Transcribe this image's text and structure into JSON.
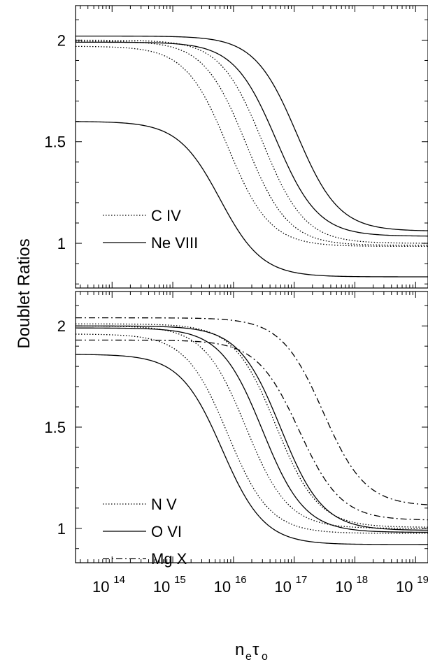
{
  "chart_data": [
    {
      "type": "line",
      "panel": "top",
      "x_scale": "log",
      "xlim": [
        25000000000000.0,
        1.6e+19
      ],
      "ylim": [
        0.78,
        2.17
      ],
      "y_ticks": [
        1,
        1.5,
        2
      ],
      "y_tick_labels": [
        "1",
        "1.5",
        "2"
      ],
      "legend": [
        {
          "label": "C IV",
          "style": "dotted"
        },
        {
          "label": "Ne VIII",
          "style": "solid"
        }
      ],
      "legend_position": "bottom-left",
      "series": [
        {
          "style": "dotted",
          "group": "C IV",
          "top": 1.97,
          "bottom": 0.985,
          "mid_x": 8000000000000000.0
        },
        {
          "style": "dotted",
          "group": "C IV",
          "top": 1.995,
          "bottom": 0.99,
          "mid_x": 1.6e+16
        },
        {
          "style": "dotted",
          "group": "C IV",
          "top": 2.0,
          "bottom": 1.0,
          "mid_x": 3e+16
        },
        {
          "style": "solid",
          "group": "Ne VIII",
          "top": 1.6,
          "bottom": 0.835,
          "mid_x": 6000000000000000.0
        },
        {
          "style": "solid",
          "group": "Ne VIII",
          "top": 1.99,
          "bottom": 1.035,
          "mid_x": 5e+16
        },
        {
          "style": "solid",
          "group": "Ne VIII",
          "top": 2.02,
          "bottom": 1.06,
          "mid_x": 1.1e+17
        }
      ]
    },
    {
      "type": "line",
      "panel": "bottom",
      "x_scale": "log",
      "xlim": [
        25000000000000.0,
        1.6e+19
      ],
      "ylim": [
        0.83,
        2.17
      ],
      "y_ticks": [
        1,
        1.5,
        2
      ],
      "y_tick_labels": [
        "1",
        "1.5",
        "2"
      ],
      "x_ticks": [
        100000000000000.0,
        1000000000000000.0,
        1e+16,
        1e+17,
        1e+18,
        1e+19
      ],
      "x_tick_labels": [
        "14",
        "15",
        "16",
        "17",
        "18",
        "19"
      ],
      "x_tick_base": "10",
      "legend": [
        {
          "label": "N V",
          "style": "dotted"
        },
        {
          "label": "O VI",
          "style": "solid"
        },
        {
          "label": "Mg X",
          "style": "dashdot"
        }
      ],
      "legend_position": "bottom-left",
      "series": [
        {
          "style": "dotted",
          "group": "N V",
          "top": 1.96,
          "bottom": 0.975,
          "mid_x": 8000000000000000.0
        },
        {
          "style": "dotted",
          "group": "N V",
          "top": 2.0,
          "bottom": 1.0,
          "mid_x": 1.6e+16
        },
        {
          "style": "dotted",
          "group": "N V",
          "top": 2.01,
          "bottom": 1.005,
          "mid_x": 5e+16
        },
        {
          "style": "solid",
          "group": "O VI",
          "top": 1.86,
          "bottom": 0.92,
          "mid_x": 6500000000000000.0
        },
        {
          "style": "solid",
          "group": "O VI",
          "top": 1.99,
          "bottom": 0.98,
          "mid_x": 3e+16
        },
        {
          "style": "solid",
          "group": "O VI",
          "top": 2.0,
          "bottom": 0.99,
          "mid_x": 6e+16
        },
        {
          "style": "dashdot",
          "group": "Mg X",
          "top": 1.93,
          "bottom": 1.04,
          "mid_x": 1.2e+17
        },
        {
          "style": "dashdot",
          "group": "Mg X",
          "top": 2.04,
          "bottom": 1.11,
          "mid_x": 3e+17
        }
      ]
    }
  ],
  "ylabel": "Doublet Ratios",
  "xlabel_main": "n",
  "xlabel_sub1": "e",
  "xlabel_tau": "τ",
  "xlabel_sub2": "o"
}
